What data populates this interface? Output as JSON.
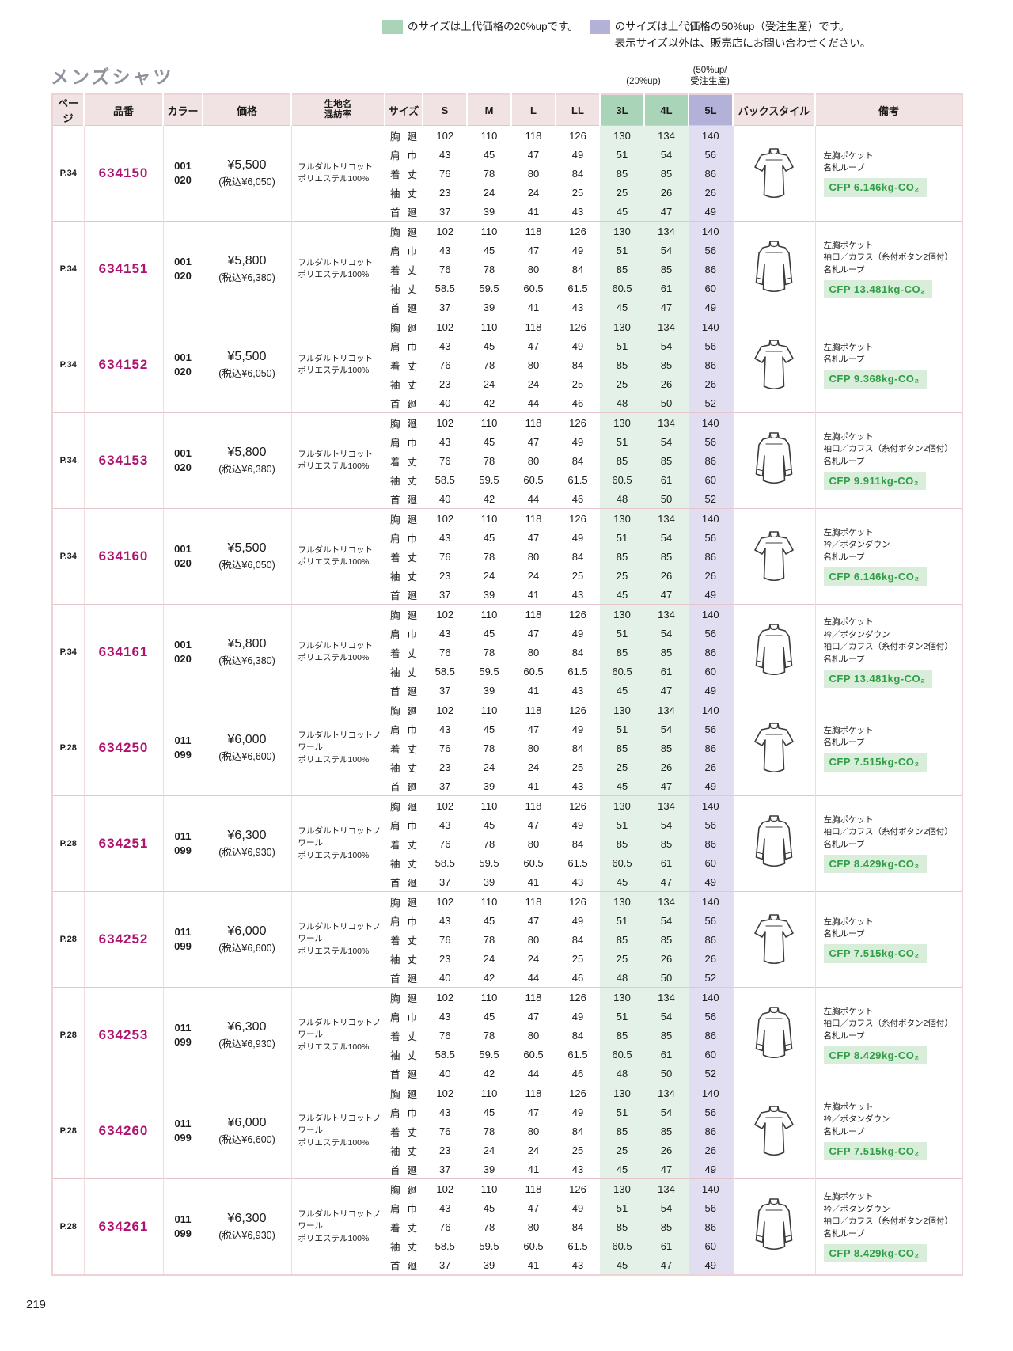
{
  "legend": {
    "green_label": "のサイズは上代価格の20%upです。",
    "purple_label": "のサイズは上代価格の50%up（受注生産）です。",
    "purple_note": "表示サイズ以外は、販売店にお問い合わせください。"
  },
  "title": "メンズシャツ",
  "page_number": "219",
  "band_notes": {
    "green": "(20%up)",
    "purple": [
      "(50%up/",
      "受注生産)"
    ]
  },
  "palette": {
    "green_header": "#a9d4b8",
    "green_cell": "#e4f1e8",
    "purple_header": "#b4b1d9",
    "purple_cell": "#e0def0",
    "header_bg": "#f1e3e3",
    "code_text": "#b0136f",
    "cfp_text": "#2f9e44",
    "cfp_bg": "#d8edda"
  },
  "table": {
    "headers": {
      "page": "ページ",
      "code": "品番",
      "color": "カラー",
      "price": "価格",
      "fabric": [
        "生地名",
        "混紡率"
      ],
      "size": "サイズ",
      "sizes": [
        "S",
        "M",
        "L",
        "LL",
        "3L",
        "4L",
        "5L"
      ],
      "back": "バックスタイル",
      "notes": "備考"
    },
    "measure_labels": [
      "胸廻",
      "肩巾",
      "着丈",
      "袖丈",
      "首廻"
    ],
    "products": [
      {
        "page": "P.34",
        "code": "634150",
        "colors": [
          "001",
          "020"
        ],
        "price": "¥5,500",
        "price_tax": "(税込¥6,050)",
        "fabric": [
          "フルダルトリコット",
          "ポリエステル100%"
        ],
        "back_style": "short",
        "notes": [
          "左胸ポケット",
          "名札ループ"
        ],
        "cfp": "CFP 6.146kg-CO₂",
        "measurements": [
          [
            102,
            110,
            118,
            126,
            130,
            134,
            140
          ],
          [
            43,
            45,
            47,
            49,
            51,
            54,
            56
          ],
          [
            76,
            78,
            80,
            84,
            85,
            85,
            86
          ],
          [
            23,
            24,
            24,
            25,
            25,
            26,
            26
          ],
          [
            37,
            39,
            41,
            43,
            45,
            47,
            49
          ]
        ]
      },
      {
        "page": "P.34",
        "code": "634151",
        "colors": [
          "001",
          "020"
        ],
        "price": "¥5,800",
        "price_tax": "(税込¥6,380)",
        "fabric": [
          "フルダルトリコット",
          "ポリエステル100%"
        ],
        "back_style": "long",
        "notes": [
          "左胸ポケット",
          "袖口／カフス（糸付ボタン2個付）",
          "名札ループ"
        ],
        "cfp": "CFP 13.481kg-CO₂",
        "measurements": [
          [
            102,
            110,
            118,
            126,
            130,
            134,
            140
          ],
          [
            43,
            45,
            47,
            49,
            51,
            54,
            56
          ],
          [
            76,
            78,
            80,
            84,
            85,
            85,
            86
          ],
          [
            58.5,
            59.5,
            60.5,
            61.5,
            60.5,
            61,
            60
          ],
          [
            37,
            39,
            41,
            43,
            45,
            47,
            49
          ]
        ]
      },
      {
        "page": "P.34",
        "code": "634152",
        "colors": [
          "001",
          "020"
        ],
        "price": "¥5,500",
        "price_tax": "(税込¥6,050)",
        "fabric": [
          "フルダルトリコット",
          "ポリエステル100%"
        ],
        "back_style": "short",
        "notes": [
          "左胸ポケット",
          "名札ループ"
        ],
        "cfp": "CFP 9.368kg-CO₂",
        "measurements": [
          [
            102,
            110,
            118,
            126,
            130,
            134,
            140
          ],
          [
            43,
            45,
            47,
            49,
            51,
            54,
            56
          ],
          [
            76,
            78,
            80,
            84,
            85,
            85,
            86
          ],
          [
            23,
            24,
            24,
            25,
            25,
            26,
            26
          ],
          [
            40,
            42,
            44,
            46,
            48,
            50,
            52
          ]
        ]
      },
      {
        "page": "P.34",
        "code": "634153",
        "colors": [
          "001",
          "020"
        ],
        "price": "¥5,800",
        "price_tax": "(税込¥6,380)",
        "fabric": [
          "フルダルトリコット",
          "ポリエステル100%"
        ],
        "back_style": "long",
        "notes": [
          "左胸ポケット",
          "袖口／カフス（糸付ボタン2個付）",
          "名札ループ"
        ],
        "cfp": "CFP 9.911kg-CO₂",
        "measurements": [
          [
            102,
            110,
            118,
            126,
            130,
            134,
            140
          ],
          [
            43,
            45,
            47,
            49,
            51,
            54,
            56
          ],
          [
            76,
            78,
            80,
            84,
            85,
            85,
            86
          ],
          [
            58.5,
            59.5,
            60.5,
            61.5,
            60.5,
            61,
            60
          ],
          [
            40,
            42,
            44,
            46,
            48,
            50,
            52
          ]
        ]
      },
      {
        "page": "P.34",
        "code": "634160",
        "colors": [
          "001",
          "020"
        ],
        "price": "¥5,500",
        "price_tax": "(税込¥6,050)",
        "fabric": [
          "フルダルトリコット",
          "ポリエステル100%"
        ],
        "back_style": "short",
        "notes": [
          "左胸ポケット",
          "衿／ボタンダウン",
          "名札ループ"
        ],
        "cfp": "CFP 6.146kg-CO₂",
        "measurements": [
          [
            102,
            110,
            118,
            126,
            130,
            134,
            140
          ],
          [
            43,
            45,
            47,
            49,
            51,
            54,
            56
          ],
          [
            76,
            78,
            80,
            84,
            85,
            85,
            86
          ],
          [
            23,
            24,
            24,
            25,
            25,
            26,
            26
          ],
          [
            37,
            39,
            41,
            43,
            45,
            47,
            49
          ]
        ]
      },
      {
        "page": "P.34",
        "code": "634161",
        "colors": [
          "001",
          "020"
        ],
        "price": "¥5,800",
        "price_tax": "(税込¥6,380)",
        "fabric": [
          "フルダルトリコット",
          "ポリエステル100%"
        ],
        "back_style": "long",
        "notes": [
          "左胸ポケット",
          "衿／ボタンダウン",
          "袖口／カフス（糸付ボタン2個付）",
          "名札ループ"
        ],
        "cfp": "CFP 13.481kg-CO₂",
        "measurements": [
          [
            102,
            110,
            118,
            126,
            130,
            134,
            140
          ],
          [
            43,
            45,
            47,
            49,
            51,
            54,
            56
          ],
          [
            76,
            78,
            80,
            84,
            85,
            85,
            86
          ],
          [
            58.5,
            59.5,
            60.5,
            61.5,
            60.5,
            61,
            60
          ],
          [
            37,
            39,
            41,
            43,
            45,
            47,
            49
          ]
        ]
      },
      {
        "page": "P.28",
        "code": "634250",
        "colors": [
          "011",
          "099"
        ],
        "price": "¥6,000",
        "price_tax": "(税込¥6,600)",
        "fabric": [
          "フルダルトリコットノワール",
          "ポリエステル100%"
        ],
        "back_style": "short",
        "notes": [
          "左胸ポケット",
          "名札ループ"
        ],
        "cfp": "CFP 7.515kg-CO₂",
        "measurements": [
          [
            102,
            110,
            118,
            126,
            130,
            134,
            140
          ],
          [
            43,
            45,
            47,
            49,
            51,
            54,
            56
          ],
          [
            76,
            78,
            80,
            84,
            85,
            85,
            86
          ],
          [
            23,
            24,
            24,
            25,
            25,
            26,
            26
          ],
          [
            37,
            39,
            41,
            43,
            45,
            47,
            49
          ]
        ]
      },
      {
        "page": "P.28",
        "code": "634251",
        "colors": [
          "011",
          "099"
        ],
        "price": "¥6,300",
        "price_tax": "(税込¥6,930)",
        "fabric": [
          "フルダルトリコットノワール",
          "ポリエステル100%"
        ],
        "back_style": "long",
        "notes": [
          "左胸ポケット",
          "袖口／カフス（糸付ボタン2個付）",
          "名札ループ"
        ],
        "cfp": "CFP 8.429kg-CO₂",
        "measurements": [
          [
            102,
            110,
            118,
            126,
            130,
            134,
            140
          ],
          [
            43,
            45,
            47,
            49,
            51,
            54,
            56
          ],
          [
            76,
            78,
            80,
            84,
            85,
            85,
            86
          ],
          [
            58.5,
            59.5,
            60.5,
            61.5,
            60.5,
            61,
            60
          ],
          [
            37,
            39,
            41,
            43,
            45,
            47,
            49
          ]
        ]
      },
      {
        "page": "P.28",
        "code": "634252",
        "colors": [
          "011",
          "099"
        ],
        "price": "¥6,000",
        "price_tax": "(税込¥6,600)",
        "fabric": [
          "フルダルトリコットノワール",
          "ポリエステル100%"
        ],
        "back_style": "short",
        "notes": [
          "左胸ポケット",
          "名札ループ"
        ],
        "cfp": "CFP 7.515kg-CO₂",
        "measurements": [
          [
            102,
            110,
            118,
            126,
            130,
            134,
            140
          ],
          [
            43,
            45,
            47,
            49,
            51,
            54,
            56
          ],
          [
            76,
            78,
            80,
            84,
            85,
            85,
            86
          ],
          [
            23,
            24,
            24,
            25,
            25,
            26,
            26
          ],
          [
            40,
            42,
            44,
            46,
            48,
            50,
            52
          ]
        ]
      },
      {
        "page": "P.28",
        "code": "634253",
        "colors": [
          "011",
          "099"
        ],
        "price": "¥6,300",
        "price_tax": "(税込¥6,930)",
        "fabric": [
          "フルダルトリコットノワール",
          "ポリエステル100%"
        ],
        "back_style": "long",
        "notes": [
          "左胸ポケット",
          "袖口／カフス（糸付ボタン2個付）",
          "名札ループ"
        ],
        "cfp": "CFP 8.429kg-CO₂",
        "measurements": [
          [
            102,
            110,
            118,
            126,
            130,
            134,
            140
          ],
          [
            43,
            45,
            47,
            49,
            51,
            54,
            56
          ],
          [
            76,
            78,
            80,
            84,
            85,
            85,
            86
          ],
          [
            58.5,
            59.5,
            60.5,
            61.5,
            60.5,
            61,
            60
          ],
          [
            40,
            42,
            44,
            46,
            48,
            50,
            52
          ]
        ]
      },
      {
        "page": "P.28",
        "code": "634260",
        "colors": [
          "011",
          "099"
        ],
        "price": "¥6,000",
        "price_tax": "(税込¥6,600)",
        "fabric": [
          "フルダルトリコットノワール",
          "ポリエステル100%"
        ],
        "back_style": "short",
        "notes": [
          "左胸ポケット",
          "衿／ボタンダウン",
          "名札ループ"
        ],
        "cfp": "CFP 7.515kg-CO₂",
        "measurements": [
          [
            102,
            110,
            118,
            126,
            130,
            134,
            140
          ],
          [
            43,
            45,
            47,
            49,
            51,
            54,
            56
          ],
          [
            76,
            78,
            80,
            84,
            85,
            85,
            86
          ],
          [
            23,
            24,
            24,
            25,
            25,
            26,
            26
          ],
          [
            37,
            39,
            41,
            43,
            45,
            47,
            49
          ]
        ]
      },
      {
        "page": "P.28",
        "code": "634261",
        "colors": [
          "011",
          "099"
        ],
        "price": "¥6,300",
        "price_tax": "(税込¥6,930)",
        "fabric": [
          "フルダルトリコットノワール",
          "ポリエステル100%"
        ],
        "back_style": "long",
        "notes": [
          "左胸ポケット",
          "衿／ボタンダウン",
          "袖口／カフス（糸付ボタン2個付）",
          "名札ループ"
        ],
        "cfp": "CFP 8.429kg-CO₂",
        "measurements": [
          [
            102,
            110,
            118,
            126,
            130,
            134,
            140
          ],
          [
            43,
            45,
            47,
            49,
            51,
            54,
            56
          ],
          [
            76,
            78,
            80,
            84,
            85,
            85,
            86
          ],
          [
            58.5,
            59.5,
            60.5,
            61.5,
            60.5,
            61,
            60
          ],
          [
            37,
            39,
            41,
            43,
            45,
            47,
            49
          ]
        ]
      }
    ]
  }
}
